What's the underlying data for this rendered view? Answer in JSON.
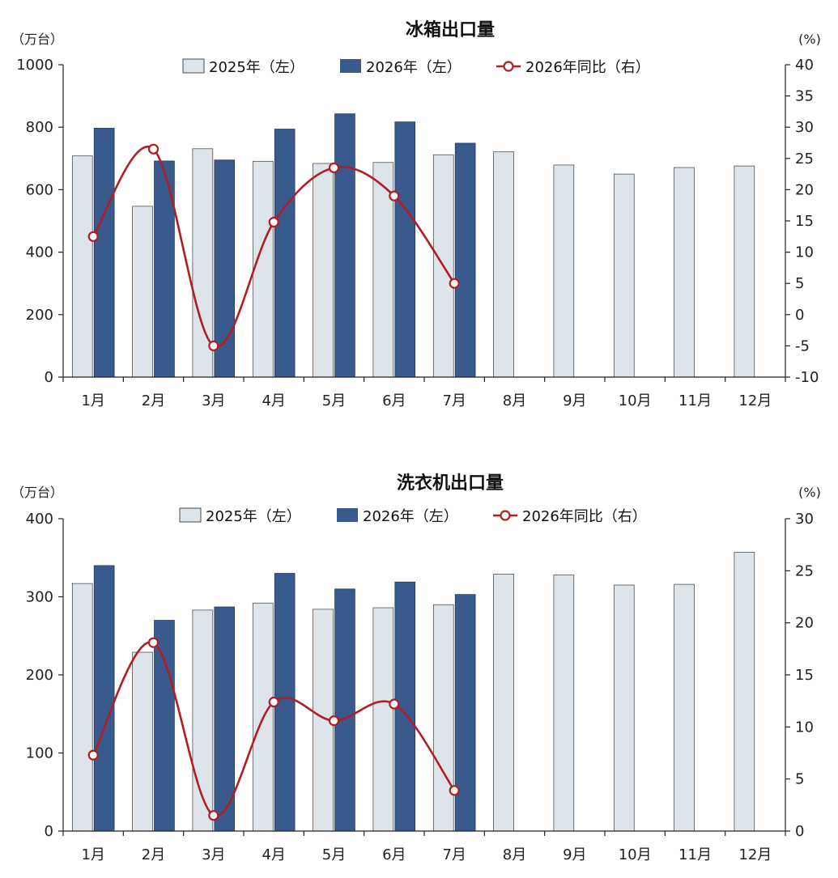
{
  "chart_data": [
    {
      "type": "bar",
      "title": "冰箱出口量",
      "y_left_unit": "（万台）",
      "y_right_unit": "(%)",
      "ylim_left": [
        0,
        1000
      ],
      "yticks_left": [
        0,
        200,
        400,
        600,
        800,
        1000
      ],
      "ylim_right": [
        -10,
        40
      ],
      "yticks_right": [
        -10,
        -5,
        0,
        5,
        10,
        15,
        20,
        25,
        30,
        35,
        40
      ],
      "categories": [
        "1月",
        "2月",
        "3月",
        "4月",
        "5月",
        "6月",
        "7月",
        "8月",
        "9月",
        "10月",
        "11月",
        "12月"
      ],
      "legend_position": "top",
      "grid": false,
      "series": [
        {
          "name": "2025年（左）",
          "type": "bar",
          "axis": "left",
          "color": "#dde5ea",
          "values": [
            708,
            547,
            731,
            691,
            684,
            687,
            712,
            721,
            679,
            650,
            671,
            676
          ]
        },
        {
          "name": "2026年（左）",
          "type": "bar",
          "axis": "left",
          "color": "#385a8c",
          "values": [
            797,
            692,
            695,
            794,
            843,
            817,
            749,
            null,
            null,
            null,
            null,
            null
          ]
        },
        {
          "name": "2026年同比（右）",
          "type": "line",
          "axis": "right",
          "color": "#b01e24",
          "values": [
            12.5,
            26.5,
            -5,
            14.8,
            23.5,
            19,
            5,
            null,
            null,
            null,
            null,
            null
          ]
        }
      ]
    },
    {
      "type": "bar",
      "title": "洗衣机出口量",
      "y_left_unit": "（万台）",
      "y_right_unit": "(%)",
      "ylim_left": [
        0,
        400
      ],
      "yticks_left": [
        0,
        100,
        200,
        300,
        400
      ],
      "ylim_right": [
        0,
        30
      ],
      "yticks_right": [
        0,
        5,
        10,
        15,
        20,
        25,
        30
      ],
      "categories": [
        "1月",
        "2月",
        "3月",
        "4月",
        "5月",
        "6月",
        "7月",
        "8月",
        "9月",
        "10月",
        "11月",
        "12月"
      ],
      "legend_position": "top",
      "grid": false,
      "series": [
        {
          "name": "2025年（左）",
          "type": "bar",
          "axis": "left",
          "color": "#dde5ea",
          "values": [
            317,
            229,
            283,
            292,
            284,
            286,
            290,
            329,
            328,
            315,
            316,
            357
          ]
        },
        {
          "name": "2026年（左）",
          "type": "bar",
          "axis": "left",
          "color": "#385a8c",
          "values": [
            340,
            270,
            287,
            330,
            310,
            319,
            303,
            null,
            null,
            null,
            null,
            null
          ]
        },
        {
          "name": "2026年同比（右）",
          "type": "line",
          "axis": "right",
          "color": "#b01e24",
          "values": [
            7.3,
            18.1,
            1.5,
            12.4,
            10.6,
            12.2,
            3.9,
            null,
            null,
            null,
            null,
            null
          ]
        }
      ]
    }
  ]
}
